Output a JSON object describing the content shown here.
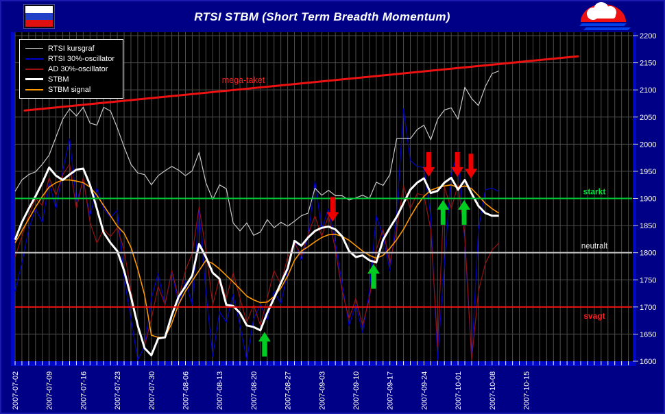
{
  "header": {
    "title": "RTSI STBM (Short Term Breadth Momentum)",
    "flag_icon": "russia-flag",
    "logo_icon": "cloud-sunset-logo"
  },
  "legend": {
    "items": [
      {
        "label": "RTSI kursgraf",
        "color": "#c8c8c8",
        "weight": 1
      },
      {
        "label": "RTSI 30%-oscillator",
        "color": "#0000cc",
        "weight": 2
      },
      {
        "label": "AD 30%-oscillator",
        "color": "#991111",
        "weight": 2
      },
      {
        "label": "STBM",
        "color": "#ffffff",
        "weight": 3
      },
      {
        "label": "STBM signal",
        "color": "#ff9900",
        "weight": 2
      }
    ]
  },
  "colors": {
    "background": "#000087",
    "plot_background": "#000000",
    "grid": "#4e4e4e",
    "frame_blue": "#0008c8",
    "axis_text": "#ffffff",
    "arrow_green": "#00cc22",
    "arrow_red": "#ee0000"
  },
  "chart_data": {
    "type": "line",
    "title": "RTSI STBM (Short Term Breadth Momentum)",
    "ylim": [
      1600,
      2200
    ],
    "y_tick_step": 50,
    "y_ticks": [
      2200,
      2150,
      2100,
      2050,
      2000,
      1950,
      1900,
      1850,
      1800,
      1750,
      1700,
      1650,
      1600
    ],
    "grid": true,
    "x_axis": {
      "tick_labels": [
        "2007-07-02",
        "2007-07-09",
        "2007-07-16",
        "2007-07-23",
        "2007-07-30",
        "2007-08-06",
        "2007-08-13",
        "2007-08-20",
        "2007-08-27",
        "2007-09-03",
        "2007-09-10",
        "2007-09-17",
        "2007-09-24",
        "2007-10-01",
        "2007-10-08",
        "2007-10-15"
      ],
      "days_between_ticks": 5,
      "total_grid_days": 91
    },
    "series": [
      {
        "name": "RTSI 30%-oscillator",
        "color": "#0000cc",
        "width": 1.2,
        "values": [
          1729,
          1780,
          1843,
          1881,
          1856,
          1929,
          1881,
          1951,
          2010,
          1894,
          1932,
          1868,
          1919,
          1881,
          1865,
          1878,
          1754,
          1678,
          1602,
          1628,
          1716,
          1761,
          1704,
          1765,
          1704,
          1748,
          1704,
          1878,
          1729,
          1609,
          1691,
          1672,
          1723,
          1666,
          1603,
          1678,
          1704,
          1676,
          1729,
          1706,
          1765,
          1824,
          1786,
          1830,
          1932,
          1843,
          1881,
          1818,
          1742,
          1666,
          1704,
          1653,
          1729,
          1868,
          1830,
          1767,
          1868,
          2065,
          1970,
          1959,
          1957,
          1868,
          1603,
          1780,
          1944,
          1986,
          1818,
          1603,
          1843,
          1916,
          1919,
          1913
        ]
      },
      {
        "name": "AD 30%-oscillator",
        "color": "#991111",
        "width": 1.2,
        "values": [
          1792,
          1830,
          1868,
          1900,
          1887,
          1938,
          1906,
          1944,
          1963,
          1881,
          1938,
          1856,
          1818,
          1843,
          1830,
          1846,
          1805,
          1729,
          1666,
          1628,
          1678,
          1738,
          1704,
          1767,
          1716,
          1767,
          1799,
          1884,
          1805,
          1704,
          1754,
          1716,
          1763,
          1716,
          1672,
          1704,
          1666,
          1716,
          1767,
          1742,
          1792,
          1818,
          1795,
          1833,
          1868,
          1830,
          1868,
          1805,
          1729,
          1678,
          1716,
          1666,
          1716,
          1805,
          1843,
          1780,
          1843,
          1923,
          1881,
          1909,
          1906,
          1843,
          1628,
          1921,
          1881,
          1925,
          1830,
          1603,
          1729,
          1780,
          1805,
          1818
        ]
      },
      {
        "name": "RTSI kursgraf",
        "color": "#c8c8c8",
        "width": 1.2,
        "values": [
          1913,
          1934,
          1944,
          1949,
          1963,
          1980,
          2013,
          2046,
          2065,
          2052,
          2068,
          2039,
          2035,
          2068,
          2061,
          2030,
          1995,
          1963,
          1947,
          1944,
          1925,
          1942,
          1951,
          1959,
          1952,
          1942,
          1951,
          1985,
          1929,
          1898,
          1925,
          1918,
          1855,
          1840,
          1855,
          1832,
          1838,
          1861,
          1846,
          1856,
          1849,
          1858,
          1868,
          1873,
          1919,
          1906,
          1915,
          1905,
          1905,
          1897,
          1901,
          1906,
          1900,
          1930,
          1924,
          1944,
          2010,
          2011,
          2010,
          2027,
          2035,
          2008,
          2046,
          2063,
          2067,
          2046,
          2105,
          2084,
          2071,
          2106,
          2130,
          2135
        ]
      },
      {
        "name": "STBM signal",
        "color": "#ff9900",
        "width": 1.6,
        "values": [
          1818,
          1840,
          1862,
          1884,
          1904,
          1921,
          1929,
          1934,
          1934,
          1932,
          1929,
          1921,
          1906,
          1887,
          1868,
          1849,
          1836,
          1810,
          1770,
          1722,
          1648,
          1644,
          1644,
          1670,
          1705,
          1729,
          1748,
          1767,
          1786,
          1780,
          1770,
          1758,
          1746,
          1733,
          1720,
          1713,
          1708,
          1709,
          1719,
          1735,
          1757,
          1786,
          1803,
          1811,
          1820,
          1828,
          1833,
          1834,
          1830,
          1823,
          1813,
          1803,
          1795,
          1790,
          1795,
          1808,
          1824,
          1843,
          1866,
          1887,
          1904,
          1915,
          1920,
          1923,
          1925,
          1920,
          1923,
          1918,
          1905,
          1891,
          1881,
          1873
        ]
      },
      {
        "name": "STBM",
        "color": "#ffffff",
        "width": 3,
        "values": [
          1824,
          1856,
          1881,
          1904,
          1929,
          1957,
          1942,
          1934,
          1944,
          1953,
          1955,
          1925,
          1881,
          1837,
          1818,
          1803,
          1767,
          1719,
          1666,
          1624,
          1611,
          1642,
          1644,
          1685,
          1719,
          1738,
          1758,
          1816,
          1792,
          1763,
          1752,
          1704,
          1702,
          1689,
          1666,
          1663,
          1657,
          1689,
          1716,
          1744,
          1771,
          1822,
          1813,
          1828,
          1840,
          1846,
          1848,
          1843,
          1830,
          1803,
          1792,
          1795,
          1786,
          1782,
          1824,
          1846,
          1866,
          1891,
          1916,
          1929,
          1937,
          1910,
          1914,
          1929,
          1938,
          1916,
          1934,
          1909,
          1886,
          1873,
          1868,
          1868
        ]
      }
    ],
    "reference_lines": [
      {
        "label": "starkt",
        "value": 1900,
        "color": "#00cc33",
        "label_style": "starkt",
        "label_offset": -6
      },
      {
        "label": "neutralt",
        "value": 1800,
        "color": "#c8c8c8",
        "label_style": "neutralt",
        "label_offset": -6
      },
      {
        "label": "svagt",
        "value": 1700,
        "color": "#ee1111",
        "label_style": "svagt",
        "label_offset": 17
      }
    ],
    "trend_line": {
      "label": "mega-taket",
      "color": "#ee1111",
      "from": {
        "day": 1.4,
        "value": 2062
      },
      "to": {
        "day": 82.6,
        "value": 2162
      },
      "label_pos": {
        "day": 33.5,
        "value": 2113
      }
    },
    "arrows": [
      {
        "direction": "up",
        "color": "#00cc22",
        "day": 36.6,
        "tip_value": 1654
      },
      {
        "direction": "up",
        "color": "#00cc22",
        "day": 52.6,
        "tip_value": 1779
      },
      {
        "direction": "up",
        "color": "#00cc22",
        "day": 62.8,
        "tip_value": 1897
      },
      {
        "direction": "up",
        "color": "#00cc22",
        "day": 65.9,
        "tip_value": 1897
      },
      {
        "direction": "down",
        "color": "#ee0000",
        "day": 46.6,
        "tip_value": 1857
      },
      {
        "direction": "down",
        "color": "#ee0000",
        "day": 60.7,
        "tip_value": 1940
      },
      {
        "direction": "down",
        "color": "#ee0000",
        "day": 64.9,
        "tip_value": 1940
      },
      {
        "direction": "down",
        "color": "#ee0000",
        "day": 66.9,
        "tip_value": 1937
      }
    ]
  }
}
